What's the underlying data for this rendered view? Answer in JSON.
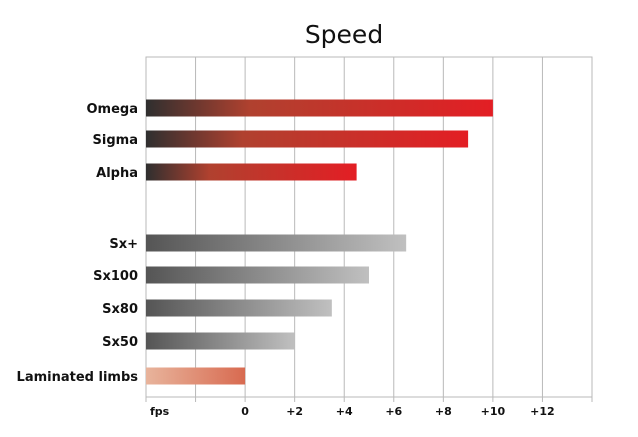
{
  "chart_data": {
    "type": "bar",
    "orientation": "horizontal",
    "title": "Speed",
    "xlabel": "",
    "ylabel": "",
    "categories": [
      "Omega",
      "Sigma",
      "Alpha",
      "Sx+",
      "Sx100",
      "Sx80",
      "Sx50",
      "Laminated limbs"
    ],
    "values": [
      10,
      9,
      4.5,
      6.5,
      5,
      3.5,
      2,
      0
    ],
    "bar_styles": [
      "red-gradient",
      "red-gradient",
      "red-gradient",
      "gray-gradient",
      "gray-gradient",
      "gray-gradient",
      "gray-gradient",
      "peach-gradient"
    ],
    "xlim": [
      -4,
      14
    ],
    "x_tick_values": [
      -4,
      -2,
      0,
      2,
      4,
      6,
      8,
      10,
      12,
      14
    ],
    "x_tick_labels": [
      "fps",
      "",
      "0",
      "+2",
      "+4",
      "+6",
      "+8",
      "+10",
      "+12",
      ""
    ],
    "grid": true,
    "legend": "none",
    "colors": {
      "red_start": "#2f2f2f",
      "red_mid": "#b0412f",
      "red_end": "#e31e24",
      "gray_start": "#555555",
      "gray_end": "#c0c0c0",
      "peach_start": "#e8b49c",
      "peach_end": "#d86a50",
      "grid": "#b9b9b9"
    }
  }
}
